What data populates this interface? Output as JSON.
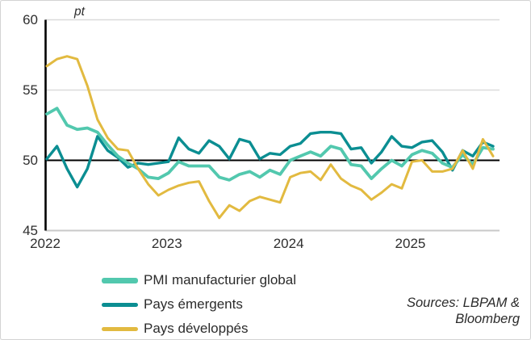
{
  "chart": {
    "unit_label": "pt",
    "y_ticks": [
      "60",
      "55",
      "50",
      "45"
    ],
    "x_ticks": [
      "2022",
      "2023",
      "2024",
      "2025"
    ]
  },
  "chart_data": {
    "type": "line",
    "title": "",
    "ylabel": "pt",
    "ylim": [
      45,
      60
    ],
    "grid": "horizontal",
    "reference_line_y": 50,
    "legend_position": "bottom-left",
    "x_start": "2022-01",
    "x_frequency": "monthly",
    "x_tick_labels": [
      "2022",
      "2023",
      "2024",
      "2025"
    ],
    "x_tick_month_index": [
      0,
      12,
      24,
      36
    ],
    "series": [
      {
        "name": "PMI manufacturier global",
        "color": "#52c8ae",
        "values": [
          53.3,
          53.7,
          52.5,
          52.2,
          52.3,
          52.0,
          51.1,
          50.3,
          49.8,
          49.4,
          48.8,
          48.7,
          49.1,
          49.9,
          49.6,
          49.6,
          49.6,
          48.8,
          48.6,
          49.0,
          49.2,
          48.8,
          49.3,
          49.0,
          50.0,
          50.3,
          50.6,
          50.3,
          51.0,
          50.8,
          49.7,
          49.6,
          48.7,
          49.4,
          50.0,
          49.6,
          50.4,
          50.7,
          50.5,
          49.8,
          49.5,
          50.4,
          49.7,
          50.9,
          50.8
        ]
      },
      {
        "name": "Pays émergents",
        "color": "#0b8e92",
        "values": [
          50.1,
          51.0,
          49.4,
          48.1,
          49.4,
          51.7,
          50.7,
          50.2,
          49.5,
          49.8,
          49.7,
          49.8,
          49.9,
          51.6,
          50.8,
          50.5,
          51.4,
          51.0,
          50.1,
          51.5,
          51.3,
          50.1,
          50.5,
          50.4,
          51.0,
          51.2,
          51.9,
          52.0,
          52.0,
          51.9,
          50.8,
          50.9,
          49.8,
          50.6,
          51.7,
          51.0,
          50.9,
          51.3,
          51.4,
          50.6,
          49.3,
          50.7,
          50.3,
          51.3,
          51.0
        ]
      },
      {
        "name": "Pays développés",
        "color": "#e2ba40",
        "values": [
          56.7,
          57.2,
          57.4,
          57.2,
          55.3,
          52.9,
          51.6,
          50.8,
          50.7,
          49.4,
          48.3,
          47.5,
          47.9,
          48.2,
          48.4,
          48.5,
          47.1,
          45.9,
          46.8,
          46.4,
          47.1,
          47.4,
          47.2,
          47.0,
          48.8,
          49.1,
          49.2,
          48.6,
          49.7,
          48.7,
          48.2,
          47.9,
          47.2,
          47.7,
          48.3,
          48.0,
          49.9,
          50.0,
          49.2,
          49.2,
          49.4,
          50.7,
          49.4,
          51.5,
          50.3
        ]
      }
    ]
  },
  "source_note": {
    "line1": "Sources: LBPAM &",
    "line2": "Bloomberg"
  }
}
